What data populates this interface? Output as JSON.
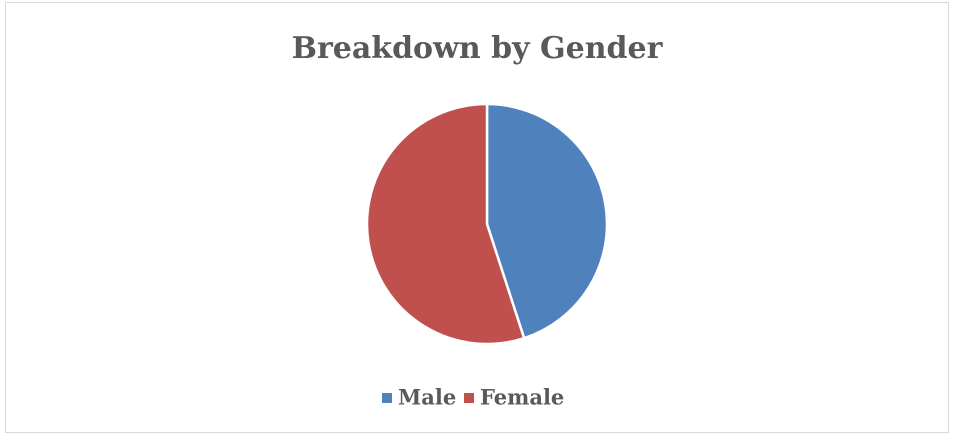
{
  "chart_data": {
    "type": "pie",
    "title": "Breakdown by Gender",
    "categories": [
      "Male",
      "Female"
    ],
    "values": [
      45,
      55
    ],
    "colors": [
      "#4f81bd",
      "#c0504d"
    ],
    "legend": "bottom"
  }
}
